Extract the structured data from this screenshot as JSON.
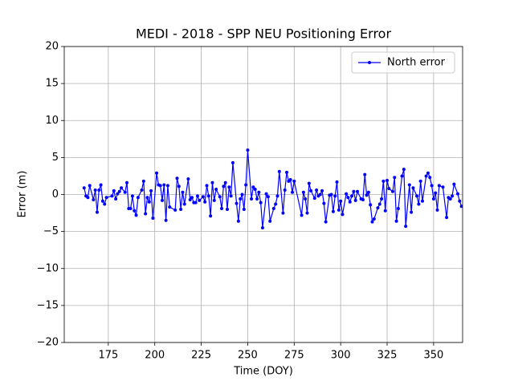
{
  "chart_data": {
    "type": "line",
    "title": "MEDI - 2018 - SPP NEU Positioning Error",
    "x_label": "Time (DOY)",
    "y_label": "Error (m)",
    "x": [
      162,
      163,
      164,
      165,
      167,
      168,
      169,
      170,
      171,
      172,
      173,
      174,
      177,
      178,
      179,
      180,
      181,
      182,
      184,
      185,
      186,
      187,
      188,
      189,
      190,
      191,
      193,
      194,
      195,
      196,
      197,
      198,
      199,
      201,
      202,
      203,
      204,
      205,
      206,
      207,
      208,
      211,
      212,
      213,
      214,
      215,
      216,
      218,
      219,
      220,
      221,
      222,
      223,
      224,
      226,
      227,
      228,
      229,
      230,
      231,
      232,
      233,
      235,
      236,
      237,
      238,
      239,
      240,
      241,
      242,
      244,
      245,
      246,
      247,
      248,
      249,
      250,
      252,
      253,
      254,
      255,
      256,
      257,
      258,
      260,
      261,
      262,
      264,
      265,
      266,
      267,
      269,
      270,
      271,
      272,
      273,
      274,
      275,
      279,
      280,
      281,
      282,
      283,
      284,
      286,
      287,
      288,
      289,
      290,
      291,
      292,
      294,
      295,
      296,
      297,
      298,
      299,
      300,
      301,
      303,
      304,
      305,
      306,
      307,
      308,
      309,
      311,
      312,
      313,
      314,
      315,
      316,
      317,
      318,
      320,
      321,
      322,
      323,
      324,
      325,
      326,
      328,
      329,
      330,
      331,
      333,
      334,
      335,
      337,
      338,
      339,
      341,
      342,
      343,
      344,
      346,
      347,
      348,
      349,
      350,
      351,
      352,
      353,
      355,
      357,
      358,
      359,
      360,
      361,
      363,
      364,
      365
    ],
    "series": [
      {
        "name": "North error",
        "color": "#0000ff",
        "values": [
          0.9,
          -0.2,
          -0.4,
          1.2,
          -0.7,
          0.6,
          -2.4,
          0.6,
          1.3,
          -0.9,
          -1.3,
          -0.4,
          -0.2,
          0.5,
          -0.6,
          0.1,
          0.4,
          0.9,
          0.3,
          1.6,
          -1.9,
          -1.9,
          -0.2,
          -2.2,
          -2.8,
          -0.4,
          0.6,
          1.8,
          -2.6,
          -0.4,
          -1.0,
          0.5,
          -3.2,
          2.9,
          1.3,
          1.2,
          -0.8,
          1.3,
          -3.5,
          1.2,
          -1.7,
          -2.1,
          2.2,
          1.1,
          -2.0,
          0.3,
          -1.3,
          2.1,
          -0.7,
          -0.4,
          -1.1,
          -1.1,
          -0.2,
          -0.8,
          -0.3,
          -1.0,
          1.2,
          -0.2,
          -2.9,
          1.6,
          -0.8,
          0.7,
          -0.3,
          -1.9,
          1.1,
          1.6,
          -2.0,
          1.0,
          -0.2,
          4.3,
          -1.2,
          -3.6,
          -0.6,
          0.0,
          -2.0,
          1.3,
          6.0,
          -0.6,
          1.0,
          0.7,
          -0.6,
          0.3,
          -1.1,
          -4.5,
          0.1,
          -0.3,
          -3.6,
          -1.9,
          -1.3,
          -0.2,
          3.1,
          -2.5,
          0.6,
          3.0,
          1.8,
          2.0,
          0.3,
          1.8,
          -2.8,
          0.3,
          -0.6,
          -2.5,
          1.5,
          0.5,
          -0.5,
          0.6,
          -0.2,
          0.0,
          0.5,
          -1.2,
          -3.7,
          -0.1,
          0.0,
          -2.3,
          -0.2,
          1.7,
          -2.1,
          -0.9,
          -2.7,
          0.1,
          -0.4,
          -1.0,
          -0.2,
          0.4,
          -0.8,
          0.4,
          -0.6,
          -0.7,
          2.7,
          -0.1,
          0.3,
          -1.4,
          -3.7,
          -3.3,
          -1.8,
          -1.3,
          -0.6,
          1.8,
          -2.2,
          1.9,
          0.8,
          0.4,
          2.3,
          -3.6,
          -1.9,
          2.5,
          3.4,
          -4.3,
          1.3,
          -2.4,
          0.9,
          -0.2,
          -1.3,
          1.8,
          -0.9,
          2.5,
          2.9,
          2.3,
          1.2,
          -0.6,
          0.2,
          -2.1,
          1.2,
          1.0,
          -3.1,
          -0.4,
          -0.6,
          -0.2,
          1.4,
          0.1,
          -0.9,
          -1.6
        ]
      }
    ],
    "xlim": [
      151.3,
      365.6
    ],
    "ylim": [
      -20,
      20
    ],
    "xticks": [
      175,
      200,
      225,
      250,
      275,
      300,
      325,
      350
    ],
    "yticks": [
      {
        "value": -20,
        "label": "−20"
      },
      {
        "value": -15,
        "label": "−15"
      },
      {
        "value": -10,
        "label": "−10"
      },
      {
        "value": -5,
        "label": "−5"
      },
      0,
      5,
      10,
      15,
      20
    ],
    "grid": true,
    "legend": "upper right"
  }
}
